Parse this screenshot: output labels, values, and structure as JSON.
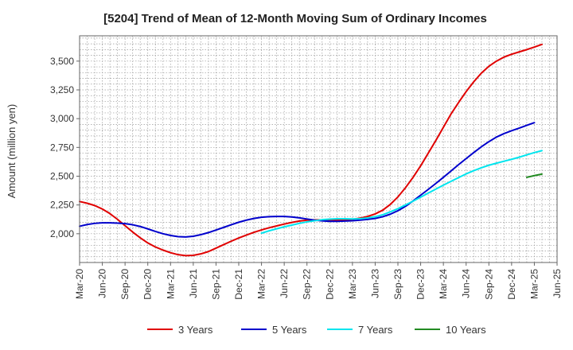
{
  "chart_data": {
    "type": "line",
    "title": "[5204]  Trend of Mean of 12-Month Moving Sum of Ordinary Incomes",
    "xlabel": "",
    "ylabel": "Amount (million yen)",
    "ylim": [
      1750,
      3720
    ],
    "yticks": [
      2000,
      2250,
      2500,
      2750,
      3000,
      3250,
      3500
    ],
    "ytick_labels": [
      "2,000",
      "2,250",
      "2,500",
      "2,750",
      "3,000",
      "3,250",
      "3,500"
    ],
    "x_categories": [
      "Mar-20",
      "Jun-20",
      "Sep-20",
      "Dec-20",
      "Mar-21",
      "Jun-21",
      "Sep-21",
      "Dec-21",
      "Mar-22",
      "Jun-22",
      "Sep-22",
      "Dec-22",
      "Mar-23",
      "Jun-23",
      "Sep-23",
      "Dec-23",
      "Mar-24",
      "Jun-24",
      "Sep-24",
      "Dec-24",
      "Mar-25",
      "Jun-25"
    ],
    "grid": true,
    "legend_position": "bottom",
    "series": [
      {
        "name": "3 Years",
        "color": "#e00000",
        "start_index": 0,
        "values": [
          2280,
          2265,
          2245,
          2215,
          2175,
          2125,
          2070,
          2015,
          1965,
          1920,
          1885,
          1858,
          1835,
          1818,
          1810,
          1812,
          1825,
          1845,
          1875,
          1905,
          1935,
          1963,
          1988,
          2012,
          2033,
          2052,
          2068,
          2084,
          2098,
          2110,
          2118,
          2121,
          2120,
          2118,
          2118,
          2120,
          2125,
          2135,
          2150,
          2172,
          2205,
          2255,
          2320,
          2400,
          2490,
          2590,
          2700,
          2810,
          2925,
          3040,
          3140,
          3235,
          3320,
          3395,
          3455,
          3500,
          3535,
          3560,
          3580,
          3600,
          3622,
          3645
        ]
      },
      {
        "name": "5 Years",
        "color": "#0000cc",
        "start_index": 0,
        "values": [
          2065,
          2080,
          2090,
          2095,
          2095,
          2092,
          2088,
          2078,
          2063,
          2042,
          2020,
          2000,
          1985,
          1975,
          1972,
          1978,
          1992,
          2010,
          2032,
          2055,
          2078,
          2100,
          2118,
          2133,
          2143,
          2148,
          2150,
          2150,
          2146,
          2138,
          2128,
          2118,
          2112,
          2108,
          2108,
          2110,
          2113,
          2118,
          2125,
          2133,
          2148,
          2170,
          2200,
          2238,
          2285,
          2335,
          2385,
          2437,
          2490,
          2545,
          2600,
          2653,
          2705,
          2755,
          2800,
          2840,
          2870,
          2895,
          2918,
          2942,
          2965
        ]
      },
      {
        "name": "7 Years",
        "color": "#00e5ee",
        "start_index": 24,
        "values": [
          2005,
          2025,
          2043,
          2060,
          2075,
          2090,
          2103,
          2113,
          2122,
          2127,
          2130,
          2130,
          2128,
          2130,
          2137,
          2148,
          2165,
          2190,
          2218,
          2250,
          2283,
          2318,
          2353,
          2388,
          2422,
          2455,
          2488,
          2520,
          2548,
          2573,
          2595,
          2613,
          2630,
          2647,
          2665,
          2685,
          2705,
          2722
        ]
      },
      {
        "name": "10 Years",
        "color": "#228b22",
        "start_index": 59,
        "values": [
          2490,
          2505,
          2518
        ]
      }
    ]
  }
}
